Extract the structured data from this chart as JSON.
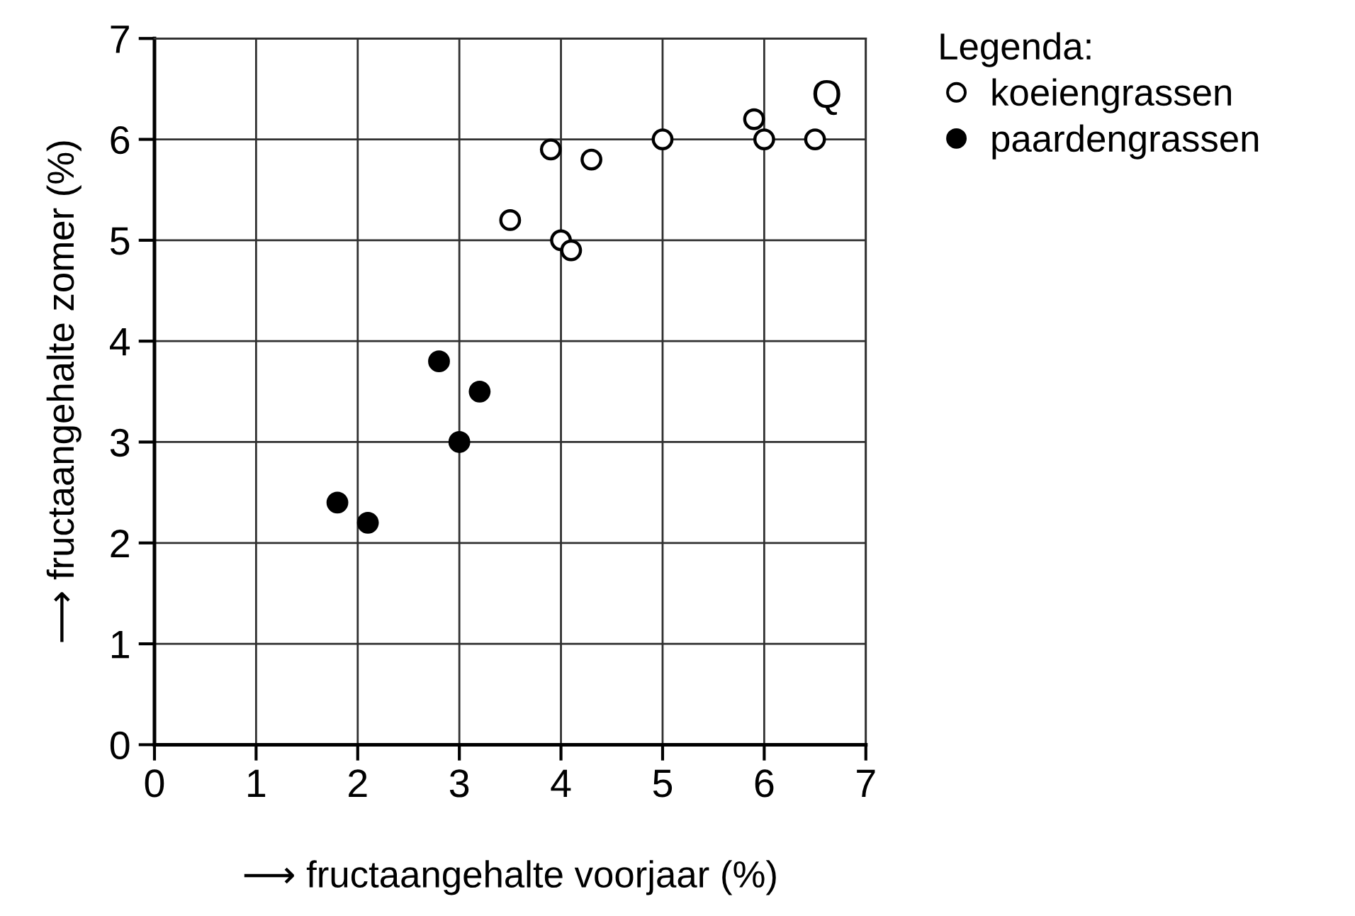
{
  "chart_data": {
    "type": "scatter",
    "xlabel": "⟶ fructaangehalte voorjaar (%)",
    "ylabel": "⟶ fructaangehalte zomer (%)",
    "legend_title": "Legenda:",
    "legend": "top right",
    "grid": true,
    "marker": "circle",
    "xlim": [
      0,
      7
    ],
    "ylim": [
      0,
      7
    ],
    "xticks": [
      0,
      1,
      2,
      3,
      4,
      5,
      6,
      7
    ],
    "yticks": [
      0,
      1,
      2,
      3,
      4,
      5,
      6,
      7
    ],
    "annotations": [
      {
        "text": "Q",
        "x": 6.5,
        "y": 6.0
      }
    ],
    "series": [
      {
        "name": "koeiengrassen",
        "color": "#ffffff",
        "x": [
          3.5,
          3.9,
          4.3,
          4.0,
          4.1,
          5.0,
          5.9,
          6.0,
          6.5
        ],
        "values": [
          5.2,
          5.9,
          5.8,
          5.0,
          4.9,
          6.0,
          6.2,
          6.0,
          6.0
        ]
      },
      {
        "name": "paardengrassen",
        "color": "#000000",
        "x": [
          1.8,
          2.1,
          2.8,
          3.0,
          3.2
        ],
        "values": [
          2.4,
          2.2,
          3.8,
          3.0,
          3.5
        ]
      }
    ]
  }
}
